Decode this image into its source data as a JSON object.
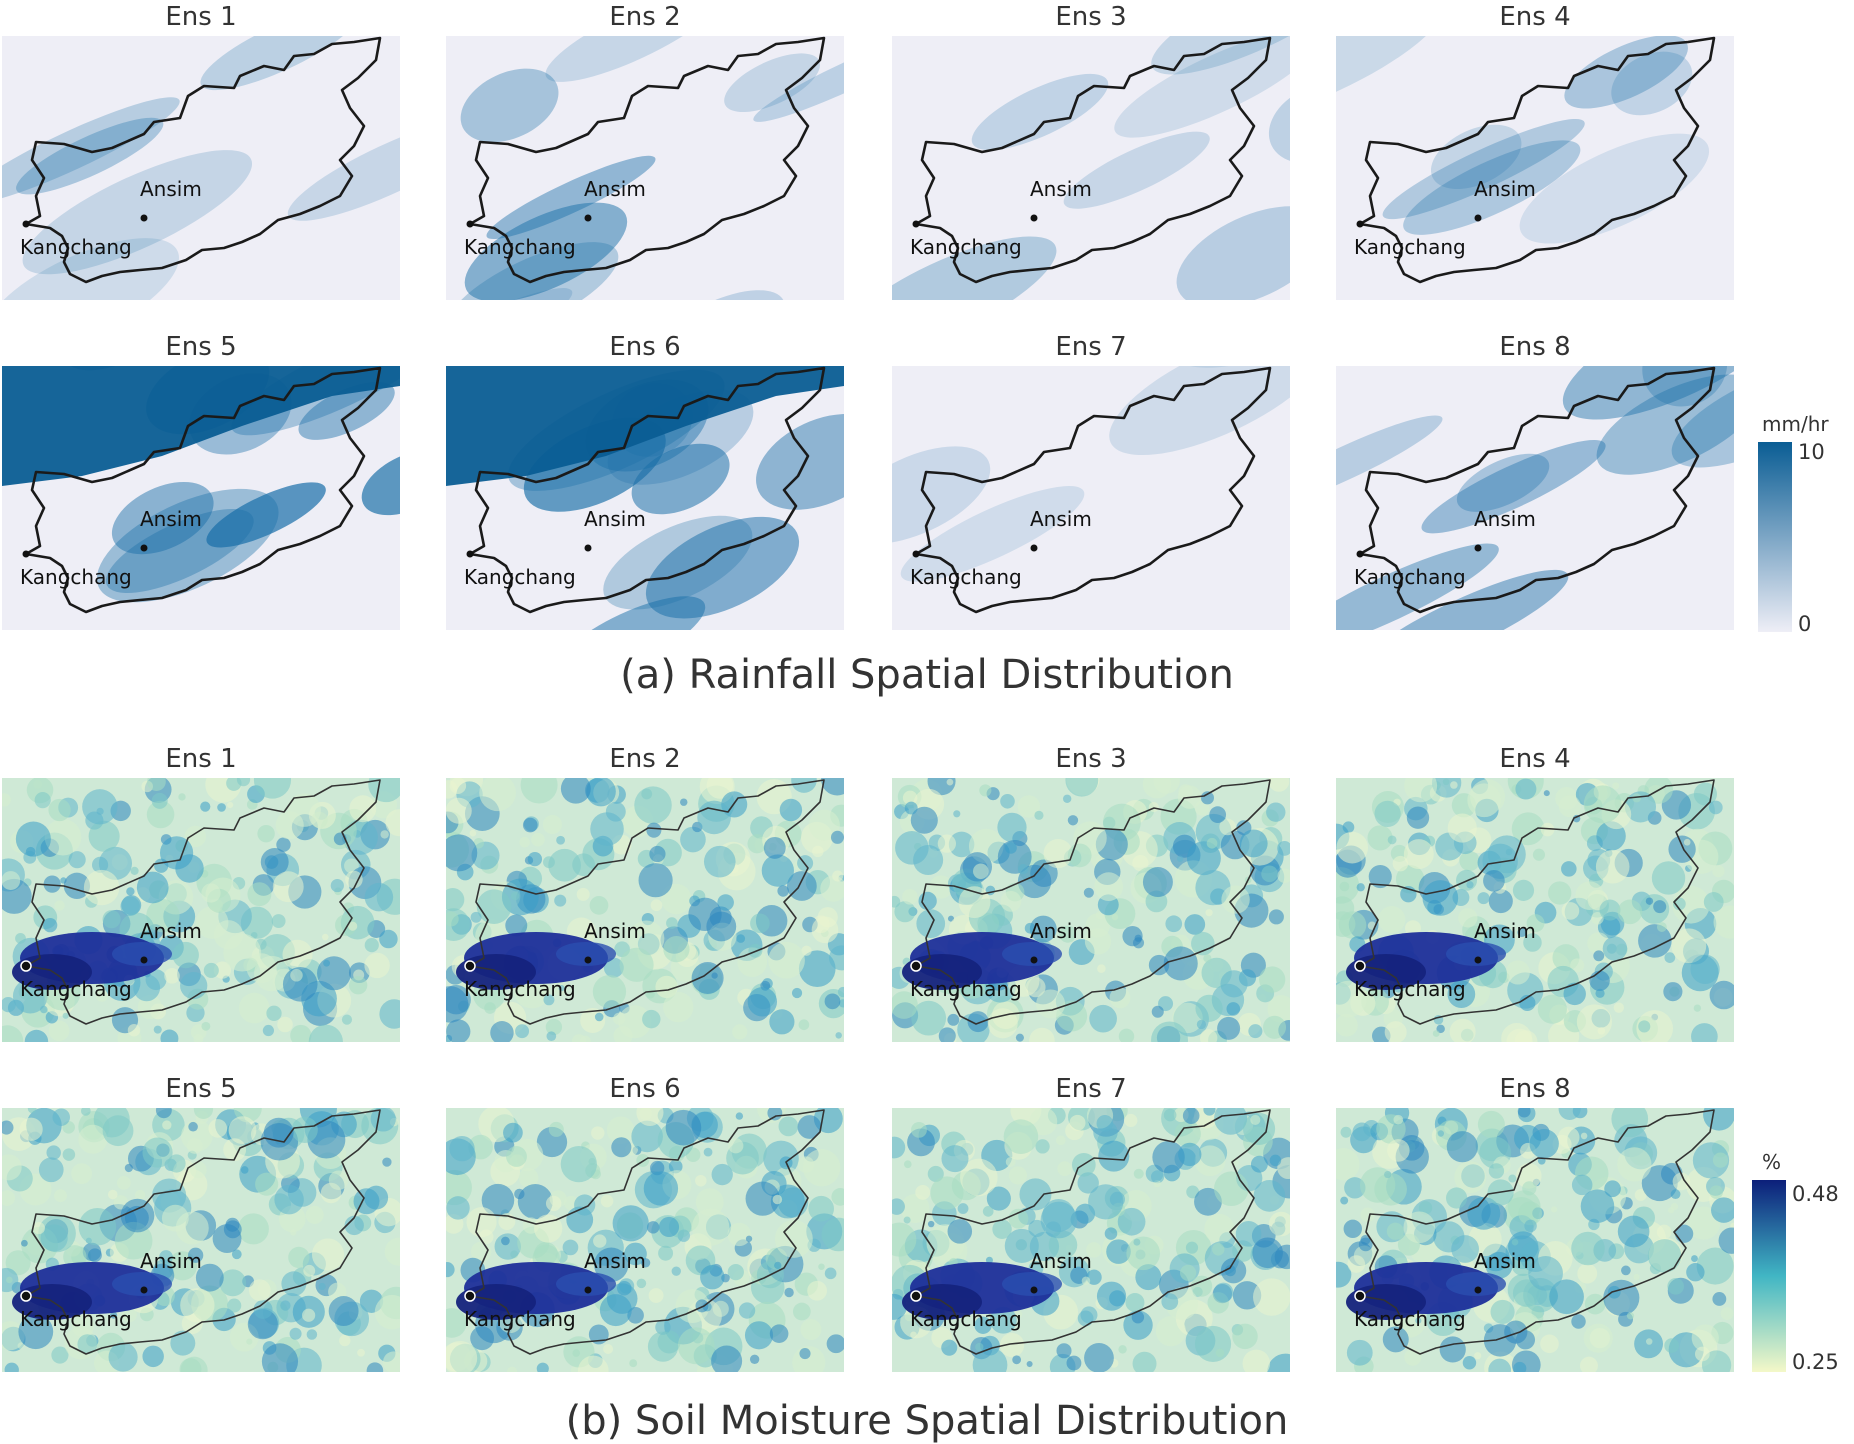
{
  "rainfall": {
    "caption": "(a) Rainfall Spatial Distribution",
    "panels": [
      {
        "title": "Ens 1",
        "intensity": "low"
      },
      {
        "title": "Ens 2",
        "intensity": "medium"
      },
      {
        "title": "Ens 3",
        "intensity": "low"
      },
      {
        "title": "Ens 4",
        "intensity": "low"
      },
      {
        "title": "Ens 5",
        "intensity": "high"
      },
      {
        "title": "Ens 6",
        "intensity": "high"
      },
      {
        "title": "Ens 7",
        "intensity": "very-low"
      },
      {
        "title": "Ens 8",
        "intensity": "medium"
      }
    ],
    "colorbar": {
      "unit": "mm/hr",
      "max_label": "10",
      "min_label": "0",
      "color_low": "#eeeef6",
      "color_high": "#0a5d94"
    }
  },
  "soil_moisture": {
    "caption": "(b) Soil Moisture Spatial Distribution",
    "panels": [
      {
        "title": "Ens 1"
      },
      {
        "title": "Ens 2"
      },
      {
        "title": "Ens 3"
      },
      {
        "title": "Ens 4"
      },
      {
        "title": "Ens 5"
      },
      {
        "title": "Ens 6"
      },
      {
        "title": "Ens 7"
      },
      {
        "title": "Ens 8"
      }
    ],
    "colorbar": {
      "unit": "%",
      "max_label": "0.48",
      "min_label": "0.25",
      "color_low": "#f4f8c8",
      "color_mid": "#41b6c4",
      "color_high": "#0c1f7a"
    }
  },
  "stations": {
    "ansim": "Ansim",
    "kangchang": "Kangchang"
  }
}
